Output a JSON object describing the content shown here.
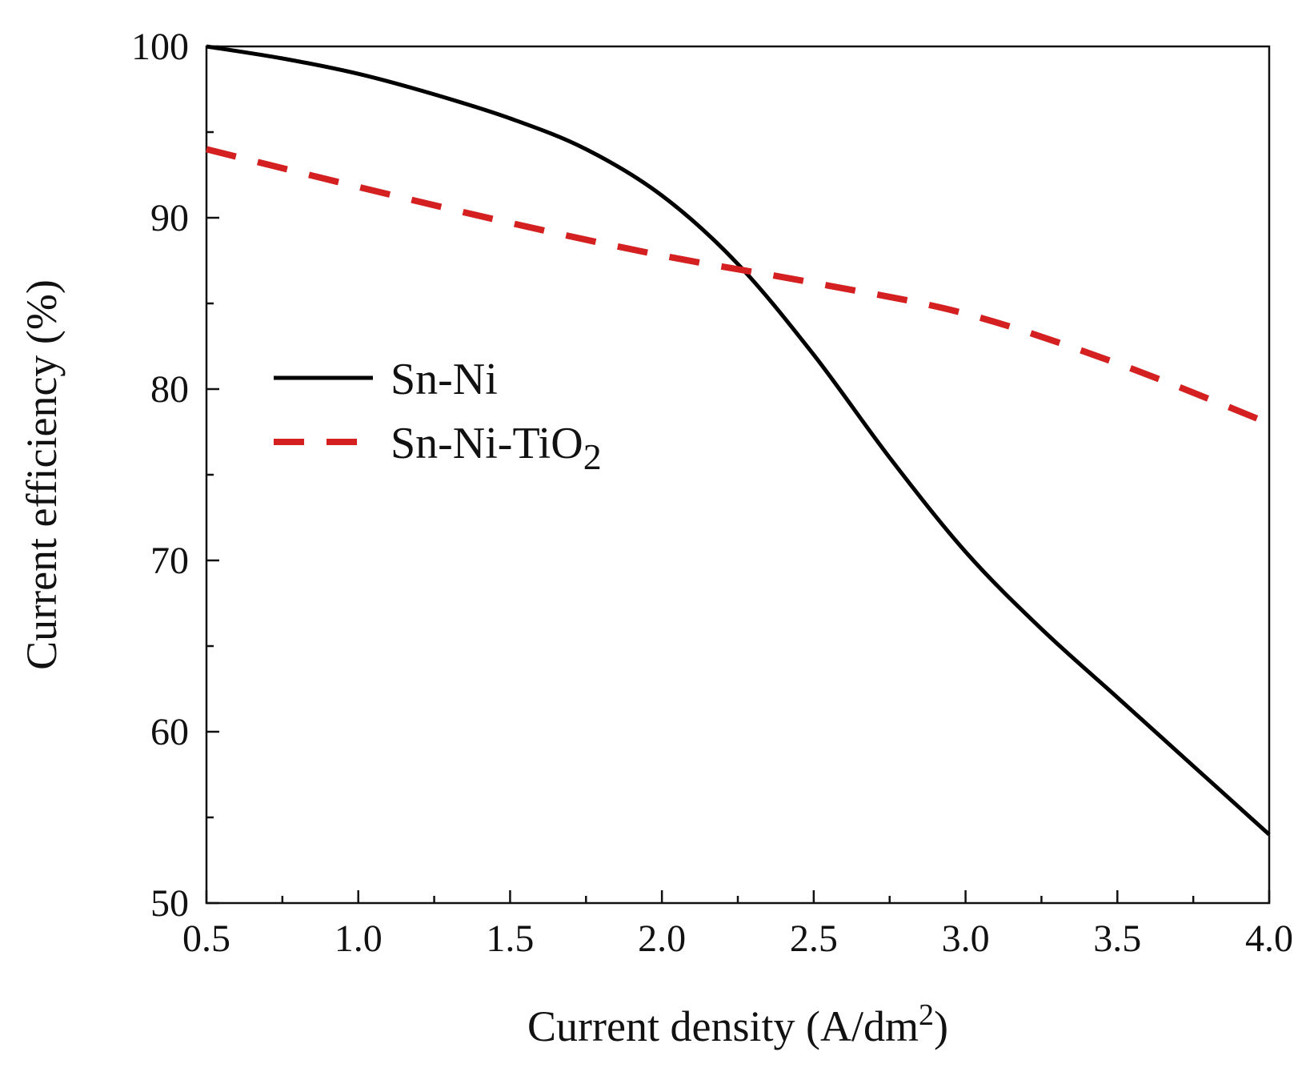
{
  "chart_data": {
    "type": "line",
    "xlabel": "Current density (A/dm²)",
    "ylabel": "Current efficiency (%)",
    "xlim": [
      0.5,
      4.0
    ],
    "ylim": [
      50,
      100
    ],
    "x_ticks": [
      "0.5",
      "1.0",
      "1.5",
      "2.0",
      "2.5",
      "3.0",
      "3.5",
      "4.0"
    ],
    "y_ticks": [
      "50",
      "60",
      "70",
      "80",
      "90",
      "100"
    ],
    "grid": false,
    "legend_position": "center-left",
    "series": [
      {
        "name": "Sn-Ni",
        "color": "#000000",
        "style": "solid",
        "x": [
          0.5,
          0.75,
          1.0,
          1.25,
          1.5,
          1.75,
          2.0,
          2.25,
          2.5,
          2.75,
          3.0,
          3.25,
          3.5,
          3.75,
          4.0
        ],
        "y": [
          100,
          99.3,
          98.4,
          97.2,
          95.8,
          94.0,
          91.3,
          87.3,
          82.0,
          76.0,
          70.5,
          66.0,
          62.0,
          58.0,
          54.0
        ]
      },
      {
        "name": "Sn-Ni-TiO2",
        "color": "#d42020",
        "style": "dashed",
        "x": [
          0.5,
          1.0,
          1.5,
          2.0,
          2.5,
          3.0,
          3.5,
          4.0
        ],
        "y": [
          94.0,
          91.8,
          89.7,
          87.8,
          86.2,
          84.4,
          81.5,
          78.0
        ]
      }
    ]
  }
}
